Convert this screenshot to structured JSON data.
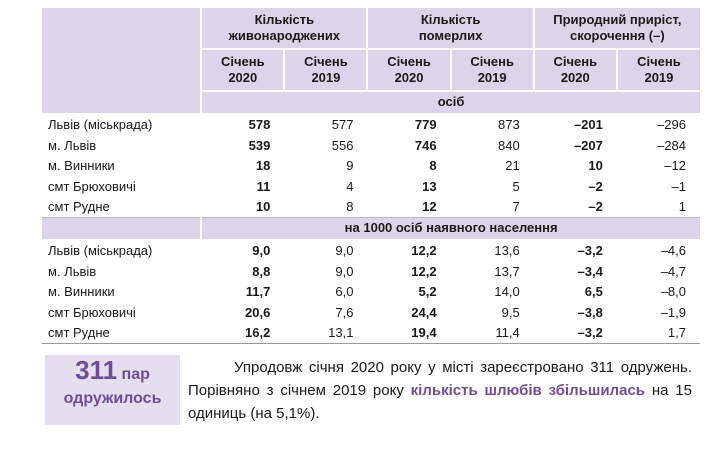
{
  "table": {
    "groups": [
      "Кількість\nживонароджених",
      "Кількість\nпомерлих",
      "Природний приріст,\nскорочення (–)"
    ],
    "columns": [
      "Січень\n2020",
      "Січень\n2019",
      "Січень\n2020",
      "Січень\n2019",
      "Січень\n2020",
      "Січень\n2019"
    ],
    "sections": [
      {
        "unit": "осіб",
        "rows": [
          {
            "label": "Львів (міськрада)",
            "values": [
              "578",
              "577",
              "779",
              "873",
              "–201",
              "–296"
            ]
          },
          {
            "label": "м. Львів",
            "values": [
              "539",
              "556",
              "746",
              "840",
              "–207",
              "–284"
            ]
          },
          {
            "label": "м. Винники",
            "values": [
              "18",
              "9",
              "8",
              "21",
              "10",
              "–12"
            ]
          },
          {
            "label": "смт Брюховичі",
            "values": [
              "11",
              "4",
              "13",
              "5",
              "–2",
              "–1"
            ]
          },
          {
            "label": "смт Рудне",
            "values": [
              "10",
              "8",
              "12",
              "7",
              "–2",
              "1"
            ]
          }
        ]
      },
      {
        "unit": "на 1000 осіб наявного населення",
        "rows": [
          {
            "label": "Львів (міськрада)",
            "values": [
              "9,0",
              "9,0",
              "12,2",
              "13,6",
              "–3,2",
              "–4,6"
            ]
          },
          {
            "label": "м. Львів",
            "values": [
              "8,8",
              "9,0",
              "12,2",
              "13,7",
              "–3,4",
              "–4,7"
            ]
          },
          {
            "label": "м. Винники",
            "values": [
              "11,7",
              "6,0",
              "5,2",
              "14,0",
              "6,5",
              "–8,0"
            ]
          },
          {
            "label": "смт Брюховичі",
            "values": [
              "20,6",
              "7,6",
              "24,4",
              "9,5",
              "–3,8",
              "–1,9"
            ]
          },
          {
            "label": "смт Рудне",
            "values": [
              "16,2",
              "13,1",
              "19,4",
              "11,4",
              "–3,2",
              "1,7"
            ]
          }
        ]
      }
    ]
  },
  "callout": {
    "number": "311",
    "unit": "пар",
    "caption": "одружилось"
  },
  "paragraph": [
    {
      "text": "Упродовж січня 2020 року у місті зареєстровано 311 одружень. Порівняно з січнем 2019 року ",
      "bold": false
    },
    {
      "text": "кількість шлюбів збільшилась",
      "bold": true
    },
    {
      "text": " на 15 одиниць (на 5,1%).",
      "bold": false
    }
  ]
}
